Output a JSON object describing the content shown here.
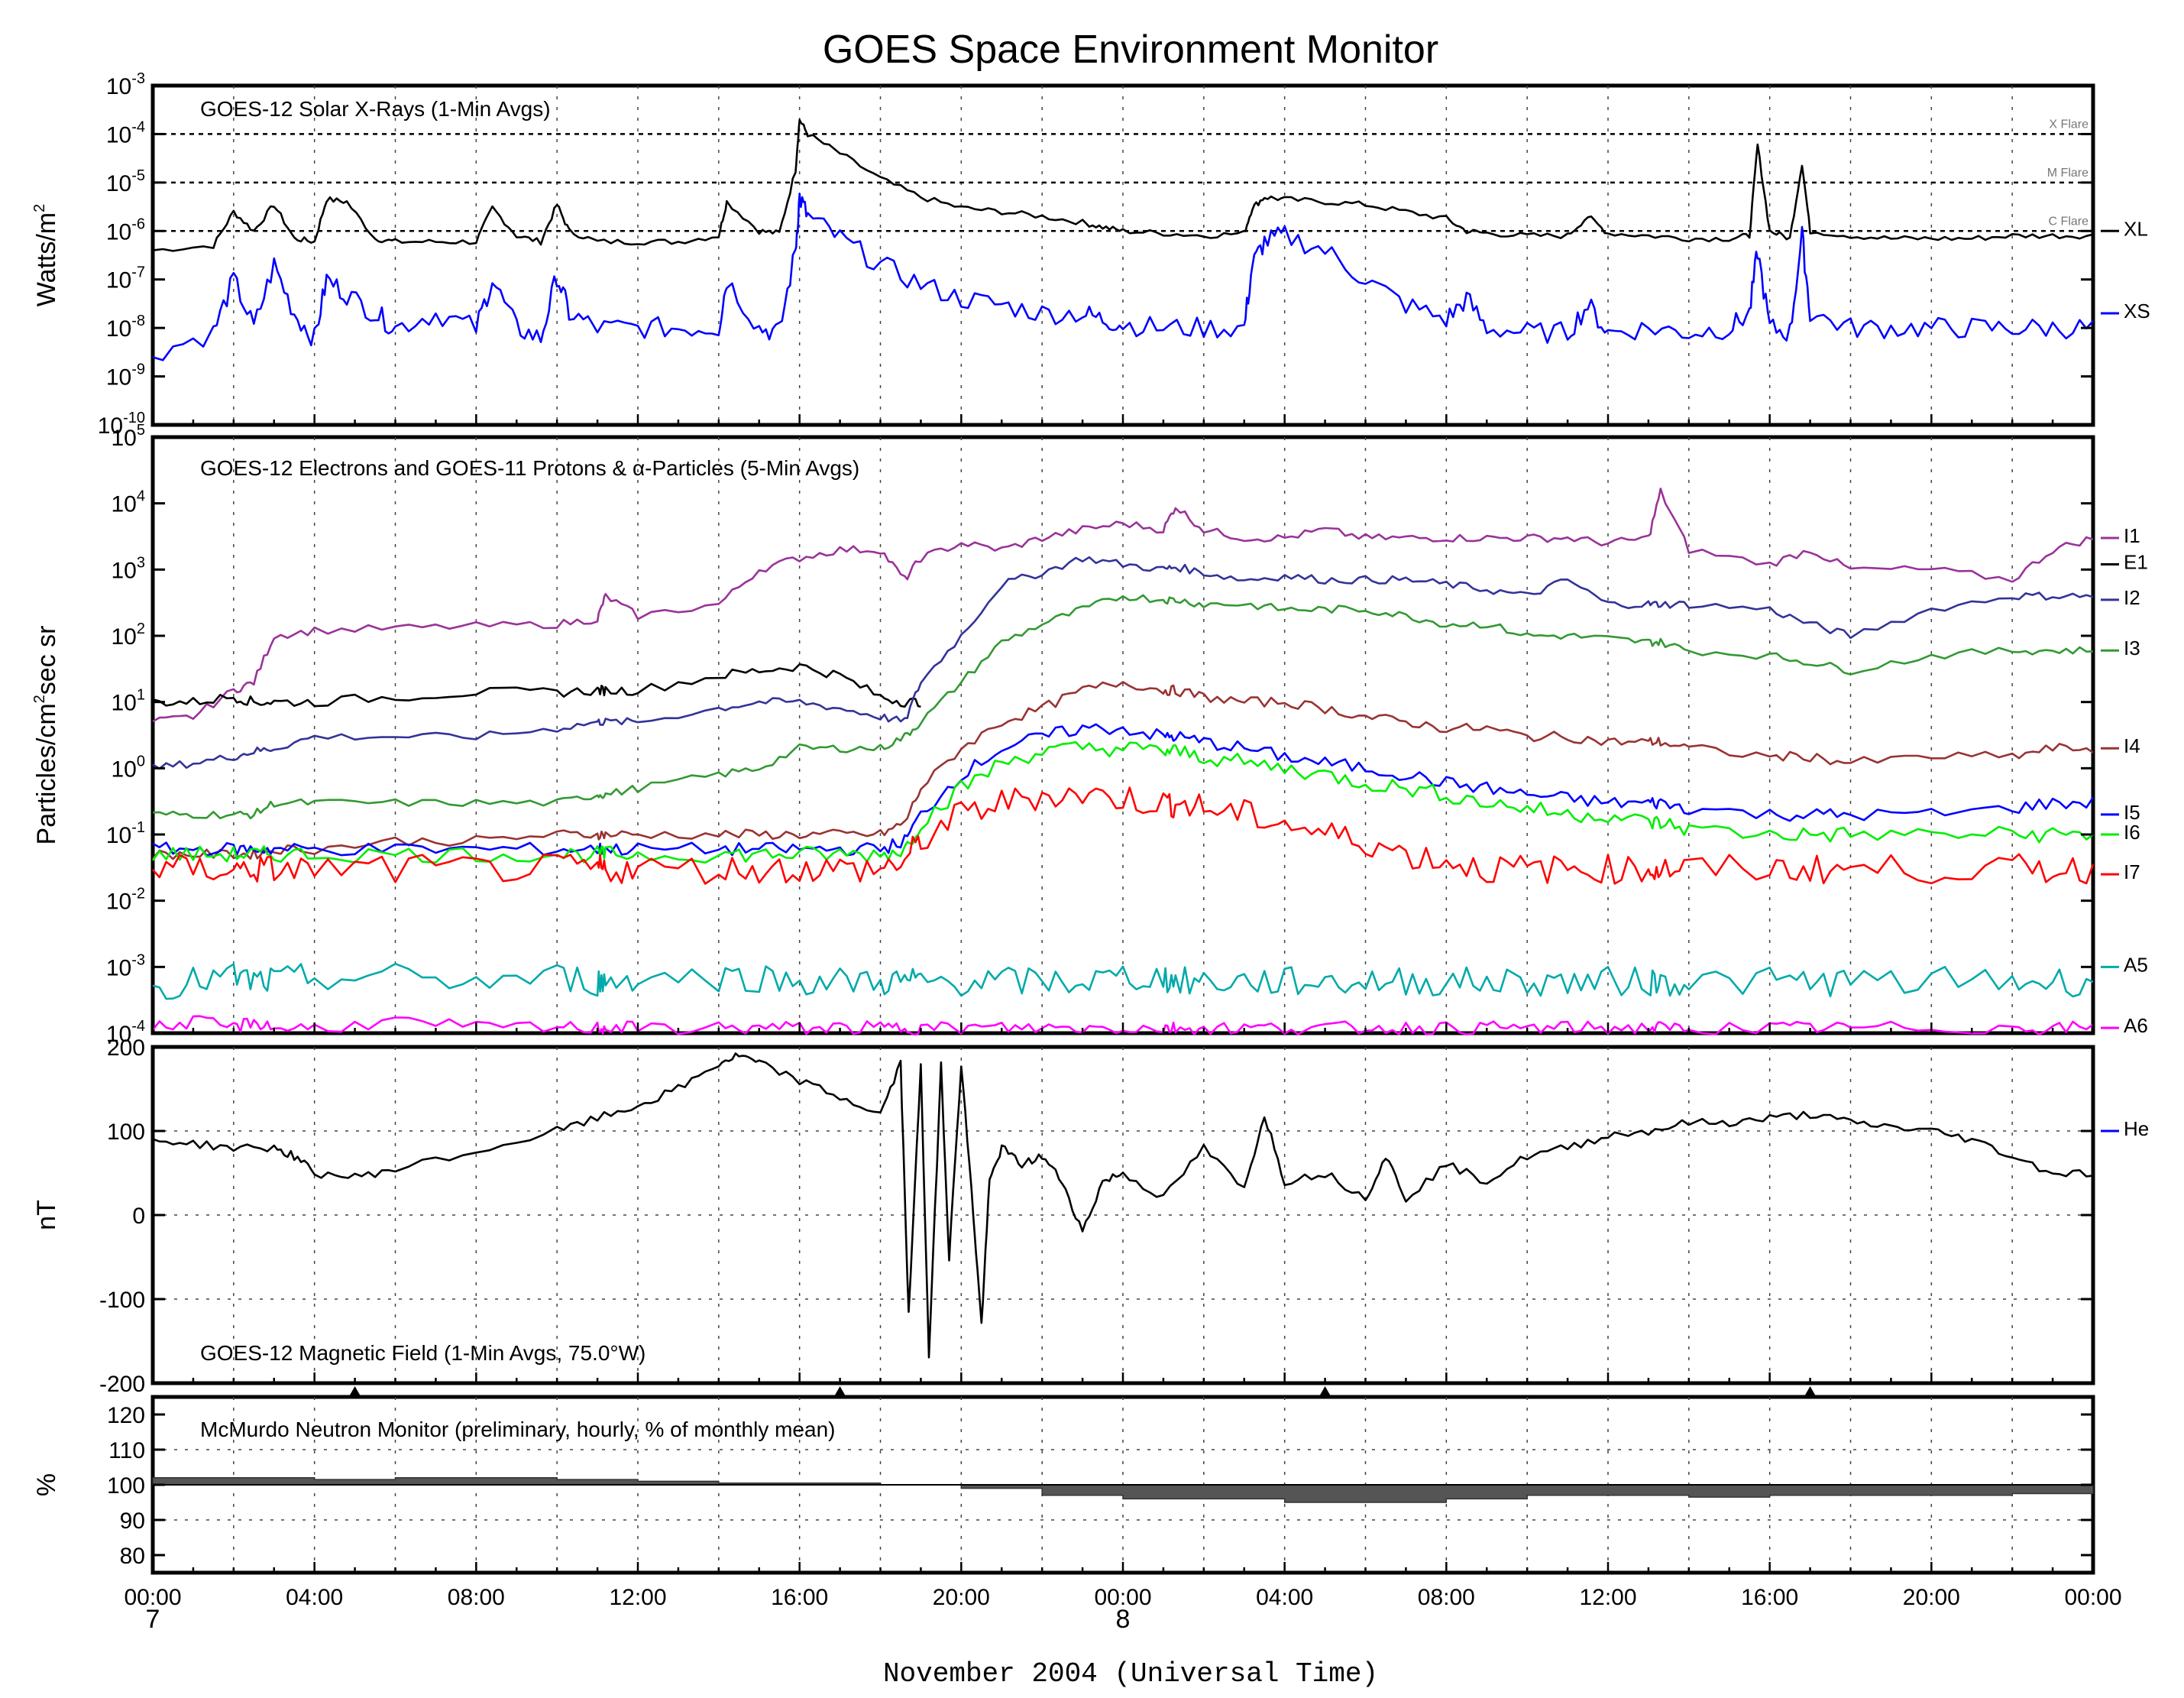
{
  "title": "GOES Space Environment Monitor",
  "xaxis": {
    "label": "November 2004 (Universal Time)",
    "ticks": [
      "00:00",
      "04:00",
      "08:00",
      "12:00",
      "16:00",
      "20:00",
      "00:00",
      "04:00",
      "08:00",
      "12:00",
      "16:00",
      "20:00",
      "00:00"
    ],
    "day_labels": {
      "start": "7",
      "mid": "8"
    },
    "range_hours": [
      0,
      48
    ]
  },
  "colors": {
    "XL": "#000000",
    "XS": "#0000ff",
    "I1": "#993399",
    "E1": "#000000",
    "I2": "#333399",
    "I3": "#339933",
    "I4": "#993333",
    "I5": "#0000ff",
    "I6": "#00ee00",
    "I7": "#ff0000",
    "A5": "#00aaaa",
    "A6": "#ff00ff",
    "He": "#0000ff",
    "neutron_fill": "#555555"
  },
  "chart_data": [
    {
      "type": "line",
      "title": "GOES-12 Solar X-Rays (1-Min Avgs)",
      "ylabel": "Watts/m",
      "ylabel_superscript": "2",
      "yscale": "log",
      "ylim": [
        1e-10,
        0.001
      ],
      "y_tick_labels": [
        {
          "base": "10",
          "exp": "-3"
        },
        {
          "base": "10",
          "exp": "-4"
        },
        {
          "base": "10",
          "exp": "-5"
        },
        {
          "base": "10",
          "exp": "-6"
        },
        {
          "base": "10",
          "exp": "-7"
        },
        {
          "base": "10",
          "exp": "-8"
        },
        {
          "base": "10",
          "exp": "-9"
        },
        {
          "base": "10",
          "exp": "-10"
        }
      ],
      "flare_levels": [
        {
          "label": "X Flare",
          "y": 0.0001
        },
        {
          "label": "M Flare",
          "y": 1e-05
        },
        {
          "label": "C Flare",
          "y": 1e-06
        }
      ],
      "x_hours": [
        0,
        1.5,
        2,
        2.5,
        3,
        3.5,
        4,
        4.3,
        4.8,
        5.5,
        6,
        7,
        8,
        8.4,
        9,
        9.6,
        10,
        10.3,
        11,
        12,
        13,
        14,
        14.2,
        15,
        15.5,
        15.9,
        16,
        16.2,
        17,
        18,
        19,
        20,
        21,
        22,
        23,
        23.5,
        24,
        25,
        26,
        27,
        27.2,
        27.5,
        28,
        29,
        30,
        31,
        32,
        32.5,
        33,
        34,
        35,
        35.5,
        36,
        37,
        38,
        39,
        39.5,
        39.7,
        40,
        40.5,
        40.8,
        41,
        42,
        43,
        44,
        45,
        46,
        47,
        48
      ],
      "series": [
        {
          "name": "XL",
          "values": [
            4e-07,
            5e-07,
            2.5e-06,
            1e-06,
            3.5e-06,
            7e-07,
            6e-07,
            4.5e-06,
            4e-06,
            7e-07,
            6e-07,
            6e-07,
            6e-07,
            3e-06,
            8e-07,
            6e-07,
            3.5e-06,
            1e-06,
            6e-07,
            6e-07,
            6e-07,
            8e-07,
            4e-06,
            1e-06,
            9e-07,
            1.8e-05,
            0.0002,
            0.0001,
            4e-05,
            1.2e-05,
            5e-06,
            3e-06,
            2.5e-06,
            2e-06,
            1.5e-06,
            1.2e-06,
            1e-06,
            9e-07,
            8e-07,
            9e-07,
            3e-06,
            5e-06,
            4.5e-06,
            4e-06,
            3.5e-06,
            2.5e-06,
            1.8e-06,
            1e-06,
            9e-07,
            8e-07,
            8e-07,
            2e-06,
            9e-07,
            8e-07,
            7e-07,
            7e-07,
            8e-07,
            6e-05,
            1e-06,
            7e-07,
            2.5e-05,
            1e-06,
            8e-07,
            7e-07,
            7e-07,
            7e-07,
            8e-07,
            8e-07,
            8e-07
          ]
        },
        {
          "name": "XS",
          "values": [
            3e-09,
            8e-09,
            1e-07,
            1e-08,
            2e-07,
            2e-08,
            6e-09,
            1e-07,
            5e-08,
            2e-08,
            1e-08,
            2e-08,
            1e-08,
            1e-07,
            1e-08,
            6e-09,
            1.2e-07,
            2e-08,
            1e-08,
            1e-08,
            1e-08,
            1e-08,
            1e-07,
            1e-08,
            8e-09,
            4e-07,
            5e-06,
            2e-06,
            7e-07,
            2e-07,
            8e-08,
            4e-08,
            3e-08,
            2e-08,
            2e-08,
            1.5e-08,
            1.2e-08,
            1e-08,
            1e-08,
            1e-08,
            2e-07,
            6e-07,
            8e-07,
            4e-07,
            1e-07,
            3e-08,
            1.5e-08,
            4e-08,
            1e-08,
            8e-09,
            8e-09,
            3e-08,
            8e-09,
            1e-08,
            8e-09,
            1e-08,
            2e-08,
            4e-07,
            1e-08,
            8e-09,
            8e-07,
            2e-08,
            1e-08,
            1e-08,
            1e-08,
            1e-08,
            1e-08,
            1e-08,
            1e-08
          ]
        }
      ]
    },
    {
      "type": "line",
      "title": "GOES-12 Electrons and GOES-11 Protons & α-Particles (5-Min Avgs)",
      "ylabel": "Particles/cm",
      "ylabel_superscript": "2",
      "ylabel_suffix": "sec sr",
      "yscale": "log",
      "ylim": [
        0.0001,
        100000.0
      ],
      "y_tick_labels": [
        {
          "base": "10",
          "exp": "5"
        },
        {
          "base": "10",
          "exp": "4"
        },
        {
          "base": "10",
          "exp": "3"
        },
        {
          "base": "10",
          "exp": "2"
        },
        {
          "base": "10",
          "exp": "1"
        },
        {
          "base": "10",
          "exp": "0"
        },
        {
          "base": "10",
          "exp": "-1"
        },
        {
          "base": "10",
          "exp": "-2"
        },
        {
          "base": "10",
          "exp": "-3"
        },
        {
          "base": "10",
          "exp": "-4"
        }
      ],
      "x_hours": [
        0,
        1,
        2,
        2.5,
        3,
        4,
        6,
        8,
        10,
        11,
        11.2,
        12,
        14,
        15,
        16,
        17,
        18,
        18.6,
        19,
        20,
        21,
        22,
        23,
        24,
        25,
        25.3,
        26,
        27,
        28,
        29,
        30,
        31,
        32,
        33,
        34,
        35,
        36,
        37,
        37.3,
        38,
        40,
        41,
        42,
        44,
        46,
        47,
        48
      ],
      "series": [
        {
          "name": "I1",
          "values": [
            5,
            6,
            15,
            20,
            100,
            120,
            130,
            140,
            150,
            180,
            400,
            200,
            300,
            1000,
            1500,
            2000,
            2000,
            700,
            1500,
            2500,
            2000,
            3000,
            4000,
            5000,
            4000,
            9000,
            4000,
            3000,
            3000,
            4000,
            3000,
            3000,
            3000,
            3000,
            3000,
            3000,
            2500,
            3000,
            15000,
            2000,
            1200,
            2000,
            1000,
            1000,
            700,
            2000,
            3000
          ]
        },
        {
          "name": "E1",
          "values": [
            10,
            10,
            12,
            10,
            10,
            10,
            12,
            14,
            14,
            15,
            15,
            15,
            25,
            30,
            35,
            25,
            12,
            10,
            10,
            null,
            null,
            null,
            null,
            null,
            null,
            null,
            null,
            null,
            null,
            null,
            null,
            null,
            null,
            null,
            null,
            null,
            null,
            null,
            null,
            null,
            null,
            null,
            null,
            null,
            null,
            null,
            null
          ]
        },
        {
          "name": "I2",
          "values": [
            1,
            1.2,
            1.5,
            1.8,
            2,
            3,
            3,
            3,
            4,
            5,
            5,
            5,
            8,
            10,
            10,
            8,
            6,
            5,
            20,
            100,
            600,
            900,
            1500,
            1200,
            1000,
            1100,
            900,
            700,
            800,
            700,
            700,
            700,
            600,
            500,
            400,
            700,
            300,
            300,
            300,
            300,
            250,
            150,
            100,
            250,
            400,
            400,
            400
          ]
        },
        {
          "name": "I3",
          "values": [
            0.2,
            0.2,
            0.2,
            0.2,
            0.3,
            0.3,
            0.3,
            0.3,
            0.3,
            0.4,
            0.4,
            0.5,
            0.8,
            1,
            2,
            2,
            2,
            3,
            5,
            20,
            80,
            150,
            250,
            400,
            350,
            350,
            300,
            300,
            250,
            250,
            250,
            200,
            150,
            150,
            100,
            100,
            90,
            80,
            80,
            60,
            50,
            40,
            30,
            50,
            60,
            60,
            60
          ]
        },
        {
          "name": "I4",
          "values": [
            0.05,
            0.05,
            0.05,
            0.05,
            0.06,
            0.06,
            0.08,
            0.08,
            0.1,
            0.1,
            0.1,
            0.1,
            0.1,
            0.1,
            0.1,
            0.1,
            0.1,
            0.15,
            0.5,
            2,
            5,
            8,
            15,
            20,
            15,
            15,
            12,
            10,
            10,
            8,
            6,
            5,
            4,
            4,
            3,
            3,
            2.5,
            2.5,
            2.5,
            2,
            1.5,
            1.5,
            1.2,
            1.5,
            1.5,
            2,
            2
          ]
        },
        {
          "name": "I5",
          "values": [
            0.06,
            0.06,
            0.06,
            0.06,
            0.06,
            0.06,
            0.06,
            0.06,
            0.06,
            0.06,
            0.06,
            0.06,
            0.06,
            0.06,
            0.06,
            0.06,
            0.06,
            0.08,
            0.2,
            0.8,
            2,
            3,
            4,
            4,
            3,
            3,
            2.5,
            2,
            1.5,
            1.2,
            1,
            0.8,
            0.6,
            0.5,
            0.4,
            0.35,
            0.3,
            0.3,
            0.3,
            0.25,
            0.2,
            0.2,
            0.2,
            0.2,
            0.25,
            0.3,
            0.3
          ]
        },
        {
          "name": "I6",
          "values": [
            0.05,
            0.05,
            0.05,
            0.05,
            0.05,
            0.05,
            0.05,
            0.05,
            0.05,
            0.05,
            0.05,
            0.05,
            0.05,
            0.05,
            0.05,
            0.05,
            0.05,
            0.06,
            0.15,
            0.5,
            1.2,
            1.8,
            2,
            2,
            1.8,
            1.8,
            1.5,
            1.2,
            1,
            0.8,
            0.6,
            0.5,
            0.4,
            0.3,
            0.25,
            0.2,
            0.2,
            0.15,
            0.15,
            0.12,
            0.1,
            0.1,
            0.1,
            0.1,
            0.1,
            0.1,
            0.1
          ]
        },
        {
          "name": "I7",
          "values": [
            0.03,
            0.03,
            0.03,
            0.03,
            0.03,
            0.03,
            0.03,
            0.03,
            0.03,
            0.03,
            0.03,
            0.03,
            0.03,
            0.03,
            0.03,
            0.03,
            0.03,
            0.04,
            0.08,
            0.2,
            0.3,
            0.4,
            0.4,
            0.35,
            0.3,
            0.3,
            0.25,
            0.2,
            0.15,
            0.1,
            0.08,
            0.05,
            0.04,
            0.03,
            0.03,
            0.03,
            0.03,
            0.03,
            0.03,
            0.03,
            0.03,
            0.03,
            0.03,
            0.03,
            0.03,
            0.03,
            0.03
          ]
        },
        {
          "name": "A5",
          "values": [
            0.0005,
            0.0006,
            0.0007,
            0.0006,
            0.0006,
            0.0007,
            0.0007,
            0.0006,
            0.0007,
            0.0006,
            0.0006,
            0.0007,
            0.0007,
            0.0007,
            0.0006,
            0.0006,
            0.0006,
            0.0006,
            0.0006,
            0.0006,
            0.0006,
            0.0006,
            0.0006,
            0.0007,
            0.0007,
            0.0006,
            0.0006,
            0.0006,
            0.0006,
            0.0006,
            0.0006,
            0.0006,
            0.0006,
            0.0006,
            0.0006,
            0.0006,
            0.0006,
            0.0006,
            0.0006,
            0.0006,
            0.0006,
            0.0006,
            0.0006,
            0.0006,
            0.0006,
            0.0006,
            0.0006
          ]
        },
        {
          "name": "A6",
          "values": [
            0.00012,
            0.00015,
            0.00012,
            0.00015,
            0.00012,
            0.00012,
            0.00015,
            0.00012,
            0.00012,
            0.00012,
            0.00012,
            0.00012,
            0.00012,
            0.00012,
            0.00012,
            0.00012,
            0.00012,
            0.00012,
            0.00012,
            0.00012,
            0.00012,
            0.00012,
            0.00012,
            0.00012,
            0.00012,
            0.00012,
            0.00012,
            0.00012,
            0.00012,
            0.00012,
            0.00012,
            0.00012,
            0.00012,
            0.00012,
            0.00012,
            0.00012,
            0.00012,
            0.00012,
            0.00012,
            0.00012,
            0.00012,
            0.00012,
            0.00012,
            0.00012,
            0.00012,
            0.00012,
            0.00012
          ]
        }
      ]
    },
    {
      "type": "line",
      "title": "GOES-12 Magnetic Field (1-Min Avgs, 75.0°W)",
      "ylabel": "nT",
      "ylim": [
        -200,
        200
      ],
      "y_tick_labels": [
        "200",
        "100",
        "0",
        "-100",
        "-200"
      ],
      "x_hours": [
        0,
        1,
        2,
        3,
        3.5,
        4,
        5,
        6,
        8,
        10,
        11,
        12,
        13,
        14,
        14.5,
        15,
        16,
        17,
        18,
        18.5,
        18.7,
        19,
        19.2,
        19.5,
        19.7,
        20,
        20.3,
        20.5,
        20.7,
        21,
        21.5,
        22,
        22.5,
        23,
        23.5,
        24,
        25,
        26,
        27,
        27.5,
        28,
        29,
        30,
        30.5,
        31,
        32,
        33,
        34,
        35,
        36,
        37,
        38,
        39,
        40,
        41,
        42,
        43,
        44,
        45,
        46,
        47,
        48
      ],
      "series": [
        {
          "name": "He",
          "values": [
            90,
            85,
            80,
            80,
            70,
            50,
            45,
            55,
            75,
            100,
            115,
            130,
            150,
            180,
            190,
            180,
            160,
            140,
            120,
            180,
            -120,
            180,
            -170,
            180,
            -50,
            180,
            0,
            -130,
            40,
            80,
            60,
            70,
            40,
            -20,
            40,
            50,
            20,
            80,
            30,
            120,
            40,
            50,
            20,
            70,
            20,
            60,
            40,
            70,
            80,
            95,
            100,
            110,
            110,
            115,
            120,
            110,
            105,
            100,
            90,
            70,
            50,
            50
          ]
        }
      ]
    },
    {
      "type": "area",
      "title": "McMurdo Neutron Monitor (preliminary, hourly, % of monthly mean)",
      "ylabel": "%",
      "ylim": [
        75,
        125
      ],
      "y_tick_labels": [
        "120",
        "110",
        "100",
        "90",
        "80"
      ],
      "baseline": 100,
      "x_hours": [
        0,
        2,
        4,
        6,
        8,
        10,
        12,
        14,
        16,
        18,
        19,
        20,
        22,
        24,
        26,
        28,
        30,
        32,
        34,
        36,
        38,
        40,
        42,
        44,
        46,
        48
      ],
      "values": [
        102,
        102,
        101.5,
        102,
        102,
        101.5,
        101,
        100.5,
        100.5,
        100,
        100,
        99,
        97,
        96,
        96,
        95,
        95,
        96,
        97,
        97,
        96.5,
        97,
        97,
        97,
        97.5,
        98
      ]
    }
  ],
  "series_labels": {
    "xrays": [
      "XL",
      "XS"
    ],
    "particles": [
      "I1",
      "E1",
      "I2",
      "I3",
      "I4",
      "I5",
      "I6",
      "I7",
      "A5",
      "A6"
    ],
    "magnetic": [
      "He"
    ]
  }
}
